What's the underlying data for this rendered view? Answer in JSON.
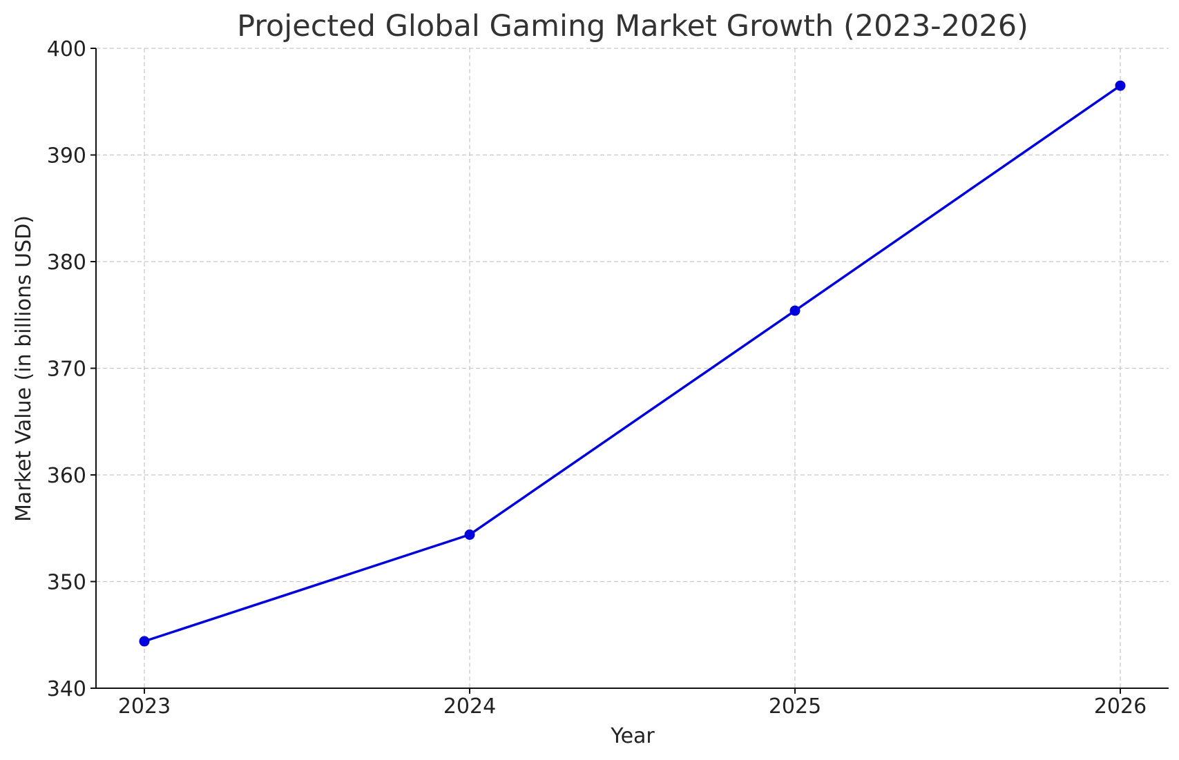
{
  "chart_data": {
    "type": "line",
    "title": "Projected Global Gaming Market Growth (2023-2026)",
    "xlabel": "Year",
    "ylabel": "Market Value (in billions USD)",
    "categories": [
      "2023",
      "2024",
      "2025",
      "2026"
    ],
    "series": [
      {
        "values": [
          344.4,
          354.4,
          375.4,
          396.5
        ],
        "color": "#0000dd",
        "marker": "circle"
      }
    ],
    "ylim": [
      340,
      400
    ],
    "yticks": [
      "340",
      "350",
      "360",
      "370",
      "380",
      "390",
      "400"
    ],
    "grid": true
  }
}
